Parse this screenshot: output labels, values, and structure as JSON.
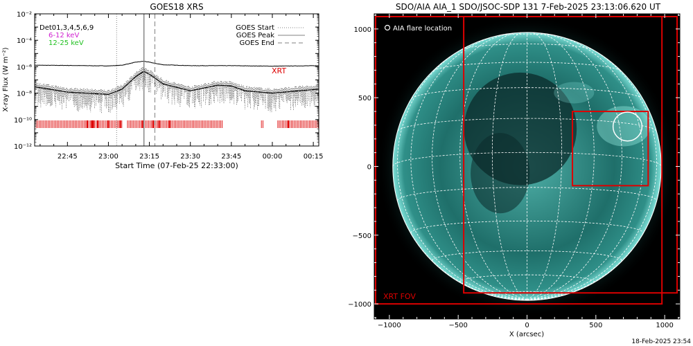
{
  "left_panel": {
    "title": "GOES18 XRS",
    "ylabel": "X-ray Flux (W m⁻²)",
    "xlabel": "Start Time (07-Feb-25 22:33:00)",
    "detector_text": "Det01,3,4,5,6,9",
    "band_low": "6-12 keV",
    "band_high": "12-25 keV",
    "legend": {
      "start": "GOES Start",
      "peak": "GOES Peak",
      "end": "GOES End"
    },
    "xrt_label": "XRT",
    "y_tick_labels": [
      "10⁻²",
      "10⁻⁴",
      "10⁻⁶",
      "10⁻⁸",
      "10⁻¹⁰",
      "10⁻¹²"
    ]
  },
  "right_panel": {
    "title": "SDO/AIA AIA_1 SDO/JSOC-SDP 131  7-Feb-2025 23:13:06.620 UT",
    "xlabel": "X (arcsec)",
    "flare_label": "AIA flare location",
    "xrt_fov_label": "XRT FOV",
    "timestamp": "18-Feb-2025 23:54"
  },
  "colors": {
    "band_low": "#d020d0",
    "band_high": "#20c020",
    "xrt": "#dd0000",
    "legend_line": "#808080",
    "sun_center": "#4fb0a8",
    "sun_mid": "#1f6f6a",
    "sun_limb": "#7fe0d8",
    "grid": "#ffffff"
  },
  "chart_data": [
    {
      "type": "line",
      "title": "GOES18 XRS",
      "xlabel": "Start Time (07-Feb-25 22:33:00)",
      "ylabel": "X-ray Flux (W m⁻²)",
      "y_scale": "log",
      "ylim": [
        1e-12,
        0.01
      ],
      "xlim": [
        "22:33",
        "00:17"
      ],
      "x_tick_labels": [
        "22:45",
        "23:00",
        "23:15",
        "23:30",
        "23:45",
        "00:00",
        "00:15"
      ],
      "y_ticks": [
        0.01,
        0.0001,
        1e-06,
        1e-08,
        1e-10,
        1e-12
      ],
      "goes_start": "23:03",
      "goes_peak": "23:13",
      "goes_end": "23:17",
      "series": [
        {
          "name": "",
          "x": [
            "22:33",
            "22:45",
            "23:00",
            "23:05",
            "23:10",
            "23:13",
            "23:16",
            "23:20",
            "23:30",
            "23:45",
            "00:00",
            "00:17"
          ],
          "values": [
            1.3e-06,
            1.25e-06,
            1.15e-06,
            1.3e-06,
            2.2e-06,
            2.6e-06,
            2e-06,
            1.4e-06,
            1.2e-06,
            1.2e-06,
            1.1e-06,
            1.2e-06
          ]
        },
        {
          "name": "",
          "x": [
            "22:33",
            "22:45",
            "23:00",
            "23:05",
            "23:10",
            "23:13",
            "23:16",
            "23:20",
            "23:30",
            "23:40",
            "23:45",
            "23:50",
            "00:00",
            "00:17"
          ],
          "values": [
            3e-08,
            1.2e-08,
            8e-09,
            2e-08,
            1.8e-07,
            4.5e-07,
            2e-07,
            5e-08,
            1.5e-08,
            4e-08,
            3.5e-08,
            1.5e-08,
            1e-08,
            2e-08
          ]
        }
      ],
      "xrt_observation_intervals": [
        [
          "22:33",
          "23:05"
        ],
        [
          "23:07",
          "23:42"
        ],
        [
          "23:56",
          "23:57"
        ],
        [
          "00:02",
          "00:17"
        ]
      ]
    },
    {
      "type": "scatter",
      "title": "SDO/AIA AIA_1 SDO/JSOC-SDP 131  7-Feb-2025 23:13:06.620 UT",
      "xlabel": "X (arcsec)",
      "ylabel": "",
      "xlim": [
        -1110,
        1110
      ],
      "ylim": [
        -1110,
        1110
      ],
      "x_tick_labels": [
        "−1000",
        "−500",
        "0",
        "500",
        "1000"
      ],
      "y_tick_labels": [
        "1000",
        "500",
        "0",
        "−500",
        "−1000"
      ],
      "solar_radius_arcsec": 975,
      "flare_location": {
        "x": 730,
        "y": 290,
        "radius": 105
      },
      "fov_boxes": [
        {
          "x0": -1100,
          "x1": 980,
          "y0": -1000,
          "y1": 1090
        },
        {
          "x0": -460,
          "x1": 1090,
          "y0": -920,
          "y1": 1090
        },
        {
          "x0": 330,
          "x1": 880,
          "y0": -140,
          "y1": 400
        }
      ]
    }
  ]
}
